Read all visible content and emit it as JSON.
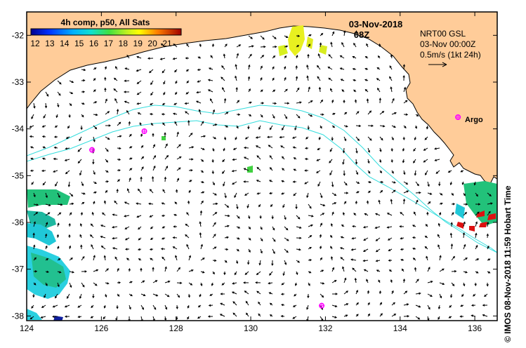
{
  "map": {
    "title": "4h comp, p50, All Sats",
    "date": "03-Nov-2018",
    "time": "08Z",
    "info_lines": [
      "NRT00 GSL",
      "03-Nov 00:00Z",
      "0.5m/s (1kt 24h)"
    ],
    "argo_label": "Argo",
    "credit": "© IMOS 08-Nov-2018 11:59 Hobart Time",
    "colorbar_ticks": [
      "12",
      "13",
      "14",
      "15",
      "16",
      "17",
      "18",
      "19",
      "20",
      "21"
    ],
    "lon_ticks": [
      "124",
      "126",
      "128",
      "130",
      "132",
      "134",
      "136"
    ],
    "lat_ticks": [
      "-32",
      "-33",
      "-34",
      "-35",
      "-36",
      "-37",
      "-38"
    ],
    "lon_range": [
      124,
      136.6
    ],
    "lat_range": [
      -38.1,
      -31.5
    ],
    "argo_floats": [
      {
        "lon": 125.75,
        "lat": -34.45
      },
      {
        "lon": 127.15,
        "lat": -34.05
      },
      {
        "lon": 131.9,
        "lat": -37.78
      },
      {
        "lon": 135.55,
        "lat": -33.75
      }
    ],
    "colors": {
      "land": "#ffcc99",
      "contour": "#33dddd",
      "argo": "#ff00ff",
      "frame": "#000000"
    }
  }
}
